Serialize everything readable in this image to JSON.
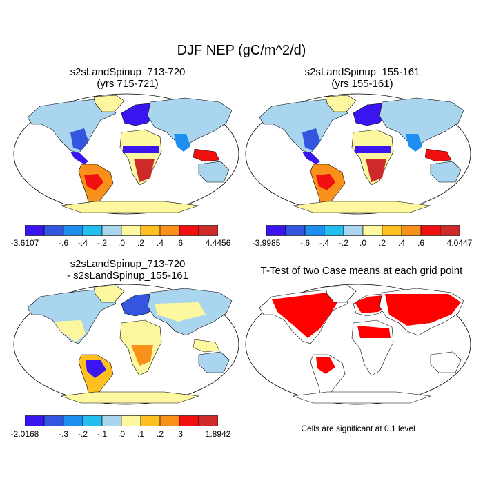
{
  "figure": {
    "title": "DJF NEP (gC/m^2/d)"
  },
  "panels": [
    {
      "title_line1": "s2sLandSpinup_713-720",
      "title_line2": "(yrs 715-721)"
    },
    {
      "title_line1": "s2sLandSpinup_155-161",
      "title_line2": "(yrs 155-161)"
    },
    {
      "title_line1": "s2sLandSpinup_713-720",
      "title_line2": "- s2sLandSpinup_155-161"
    },
    {
      "title_line1": "T-Test of two Case means at each grid point",
      "title_line2": ""
    }
  ],
  "colorbars": [
    {
      "colors": [
        "#3a15f0",
        "#3355e0",
        "#1e8ff0",
        "#22bff0",
        "#a9d5ef",
        "#fdf8a0",
        "#fdc020",
        "#f8901a",
        "#f01010",
        "#cf2a2a"
      ],
      "labels": [
        "-3.6107",
        "-.6",
        "-.4",
        "-.2",
        ".0",
        ".2",
        ".4",
        ".6",
        "4.4456"
      ]
    },
    {
      "colors": [
        "#3a15f0",
        "#3355e0",
        "#1e8ff0",
        "#22bff0",
        "#a9d5ef",
        "#fdf8a0",
        "#fdc020",
        "#f8901a",
        "#f01010",
        "#cf2a2a"
      ],
      "labels": [
        "-3.9985",
        "-.6",
        "-.4",
        "-.2",
        ".0",
        ".2",
        ".4",
        ".6",
        "4.0447"
      ]
    },
    {
      "colors": [
        "#3a15f0",
        "#3355e0",
        "#1e8ff0",
        "#22bff0",
        "#a9d5ef",
        "#fdf8a0",
        "#fdc020",
        "#f8901a",
        "#f01010",
        "#cf2a2a"
      ],
      "labels": [
        "-2.0168",
        "-.3",
        "-.2",
        "-.1",
        ".0",
        ".1",
        ".2",
        ".3",
        "1.8942"
      ]
    }
  ],
  "ttest": {
    "note": "Cells are significant at 0.1 level",
    "significant_color": "#ff0000"
  }
}
